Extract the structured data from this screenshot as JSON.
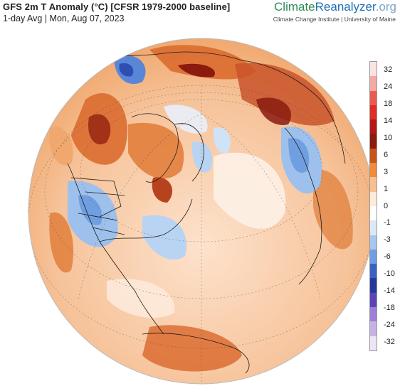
{
  "header": {
    "title": "GFS 2m T Anomaly (°C) [CFSR 1979-2000 baseline]",
    "subtitle": "1-day Avg | Mon, Aug 07, 2023",
    "brand": {
      "part1": "Climate",
      "part2": "Reanalyzer",
      "part3": ".org"
    },
    "affiliation": "Climate Change Institute | University of Maine"
  },
  "colors": {
    "warm_strong": "#8b1a0f",
    "warm_mid": "#d9672a",
    "warm_light": "#f3b07a",
    "near_zero": "#fde9d9",
    "cool_light": "#cfe2f6",
    "cool_mid": "#7fb0e6",
    "cool_strong": "#3d68c6"
  },
  "legend": {
    "labels": [
      "32",
      "24",
      "18",
      "14",
      "10",
      "6",
      "3",
      "1",
      "0",
      "-1",
      "-3",
      "-6",
      "-10",
      "-14",
      "-18",
      "-24",
      "-32"
    ],
    "colors": [
      "#fbe3e3",
      "#f3a9a4",
      "#ec5a4f",
      "#e02c24",
      "#b41818",
      "#8b1a0f",
      "#c8531c",
      "#f08a3c",
      "#f8c090",
      "#fdebdc",
      "#ffffff",
      "#dbe8f7",
      "#a7c7ee",
      "#6f9fe0",
      "#3a62c4",
      "#25399a",
      "#5a44b8",
      "#9d7fd6",
      "#c7b2e6",
      "#efe3f6"
    ]
  }
}
